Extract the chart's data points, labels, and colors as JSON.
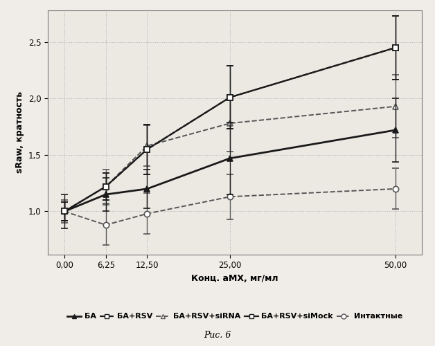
{
  "x": [
    0.0,
    6.25,
    12.5,
    25.0,
    50.0
  ],
  "series": [
    {
      "label": "БА",
      "y": [
        1.0,
        1.15,
        1.2,
        1.47,
        1.72
      ],
      "yerr": [
        0.15,
        0.15,
        0.17,
        0.32,
        0.28
      ],
      "color": "#1a1a1a",
      "linestyle": "solid",
      "marker": "^",
      "markersize": 6,
      "markerfacecolor": "#1a1a1a",
      "linewidth": 2.0,
      "zorder": 5
    },
    {
      "label": "БА+RSV",
      "y": [
        1.0,
        1.22,
        1.55,
        2.01,
        2.45
      ],
      "yerr": [
        0.08,
        0.12,
        0.22,
        0.28,
        0.28
      ],
      "color": "#1a1a1a",
      "linestyle": "dashed",
      "marker": "s",
      "markersize": 6,
      "markerfacecolor": "white",
      "linewidth": 1.6,
      "zorder": 6
    },
    {
      "label": "БА+RSV+siRNA",
      "y": [
        1.0,
        1.22,
        1.58,
        1.78,
        1.93
      ],
      "yerr": [
        0.08,
        0.15,
        0.18,
        0.25,
        0.28
      ],
      "color": "#555555",
      "linestyle": "dashed",
      "marker": "^",
      "markersize": 6,
      "markerfacecolor": "white",
      "linewidth": 1.4,
      "zorder": 4
    },
    {
      "label": "БА+RSV+siMock",
      "y": [
        1.0,
        1.22,
        1.55,
        2.01,
        2.45
      ],
      "yerr": [
        0.08,
        0.12,
        0.22,
        0.28,
        0.28
      ],
      "color": "#1a1a1a",
      "linestyle": "solid",
      "marker": "s",
      "markersize": 6,
      "markerfacecolor": "white",
      "linewidth": 1.6,
      "zorder": 6
    },
    {
      "label": "Интактные",
      "y": [
        1.0,
        0.88,
        0.98,
        1.13,
        1.2
      ],
      "yerr": [
        0.1,
        0.18,
        0.18,
        0.2,
        0.18
      ],
      "color": "#555555",
      "linestyle": "dashed",
      "marker": "o",
      "markersize": 6,
      "markerfacecolor": "white",
      "linewidth": 1.4,
      "zorder": 3
    }
  ],
  "xlabel": "Конц. аМХ, мг/мл",
  "ylabel": "sRaw, кратность",
  "xtick_labels": [
    "0,00",
    "6,25",
    "12,50",
    "25,00",
    "50,00"
  ],
  "ylim": [
    0.62,
    2.78
  ],
  "xlim": [
    -2.5,
    54
  ],
  "ytick_values": [
    1.0,
    1.5,
    2.0,
    2.5
  ],
  "ytick_labels": [
    "1,0",
    "1,5",
    "2,0",
    "2,5"
  ],
  "caption": "Рис. 6",
  "background_color": "#f0ede8",
  "plot_bg": "#ece9e3",
  "grid_color": "#b0b0b0",
  "label_fontsize": 9,
  "tick_fontsize": 8.5,
  "legend_fontsize": 8
}
